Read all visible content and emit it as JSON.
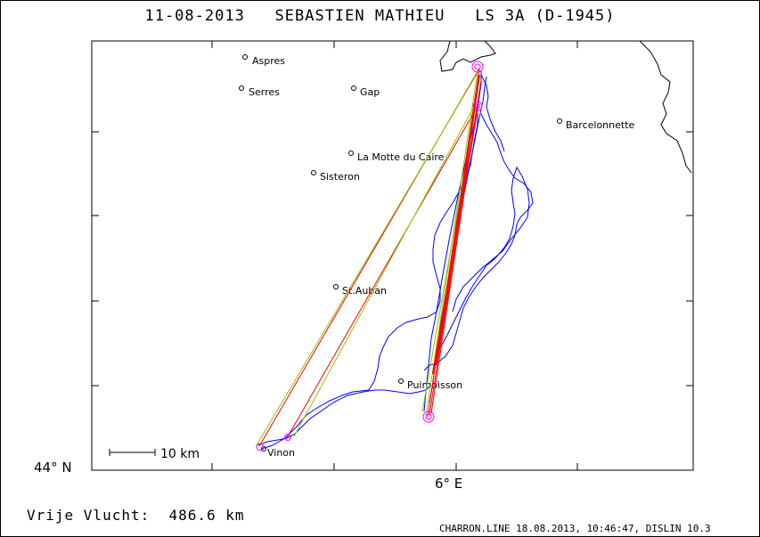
{
  "header": {
    "title": "11-08-2013   SEBASTIEN MATHIEU   LS 3A (D-1945)"
  },
  "footer": {
    "distance": "Vrije Vlucht:  486.6 km",
    "credit": "CHARRON.LINE 18.08.2013, 10:46:47, DISLIN 10.3"
  },
  "axes": {
    "lat_label": "44° N",
    "lon_label": "6° E"
  },
  "scale": {
    "label": "10 km"
  },
  "towns": [
    {
      "name": "Aspres"
    },
    {
      "name": "Serres"
    },
    {
      "name": "Gap"
    },
    {
      "name": "Barcelonnette"
    },
    {
      "name": "La Motte du Caire"
    },
    {
      "name": "Sisteron"
    },
    {
      "name": "St.Auban"
    },
    {
      "name": "Puimoisson"
    },
    {
      "name": "Vinon"
    }
  ],
  "colors": {
    "track": "#0000ff",
    "task_red": "#ff0000",
    "task_green": "#88cc00",
    "turnpoint": "#ff00ff",
    "frame": "#000000"
  }
}
